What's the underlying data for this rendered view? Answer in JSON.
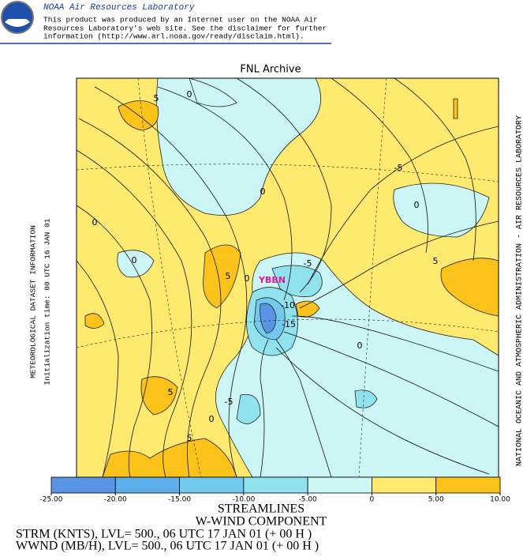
{
  "header": {
    "org": "NOAA Air Resources Laboratory",
    "disclaimer": [
      "This product was produced by an Internet user on the NOAA Air",
      "Resources Laboratory's web site.  See the disclaimer for further",
      "information (http://www.arl.noaa.gov/ready/disclaim.html)."
    ]
  },
  "map": {
    "title": "FNL Archive",
    "left_labels": [
      "METEOROLOGICAL DATASET INFORMATION",
      "Initialization time: 00 UTC 16 JAN 01"
    ],
    "right_label": "NATIONAL OCEANIC AND ATMOSPHERIC ADMINISTRATION - AIR RESOURCES LABORATORY",
    "station": "YBBN",
    "contour_labels": [
      "5",
      "0",
      "0",
      "-5",
      "0",
      "0",
      "0",
      "5",
      "0",
      "-5",
      "-10",
      "-15",
      "5",
      "0",
      "5",
      "-5",
      "0",
      "5"
    ]
  },
  "colorbar": {
    "ticks": [
      {
        "value": -25,
        "label": "-25.00"
      },
      {
        "value": -20,
        "label": "-20.00"
      },
      {
        "value": -15,
        "label": "-15.00"
      },
      {
        "value": -10,
        "label": "-10.00"
      },
      {
        "value": -5,
        "label": "-5.00"
      },
      {
        "value": 0,
        "label": "0"
      },
      {
        "value": 5,
        "label": "5.00"
      },
      {
        "value": 10,
        "label": "10.00"
      }
    ],
    "colors": [
      "#5a94e4",
      "#5eaeea",
      "#73c8ee",
      "#8fe2ee",
      "#ccf5f5",
      "#fdea6e",
      "#fbc21a"
    ]
  },
  "footer": [
    "STREAMLINES",
    "W-WIND COMPONENT",
    "STRM (KNTS),  LVL= 500., 06 UTC 17 JAN 01 (+ 00 H )",
    "WWND (MB/H),  LVL= 500., 06 UTC 17 JAN 01 (+ 00 H )"
  ]
}
